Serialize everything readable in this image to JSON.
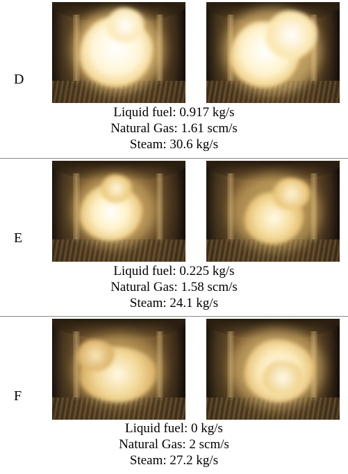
{
  "panels": [
    {
      "label": "D",
      "liquid_fuel": "Liquid fuel: 0.917 kg/s",
      "natural_gas": "Natural Gas: 1.61 scm/s",
      "steam": "Steam: 30.6 kg/s"
    },
    {
      "label": "E",
      "liquid_fuel": "Liquid fuel: 0.225 kg/s",
      "natural_gas": "Natural Gas: 1.58 scm/s",
      "steam": "Steam: 24.1 kg/s"
    },
    {
      "label": "F",
      "liquid_fuel": "Liquid fuel: 0 kg/s",
      "natural_gas": "Natural Gas: 2 scm/s",
      "steam": "Steam: 27.2 kg/s"
    }
  ],
  "colors": {
    "divider": "#8a8a8a",
    "flame_core": "#fffbe6",
    "flame_edge": "#f2d08a",
    "chamber": "#7a5a30"
  }
}
